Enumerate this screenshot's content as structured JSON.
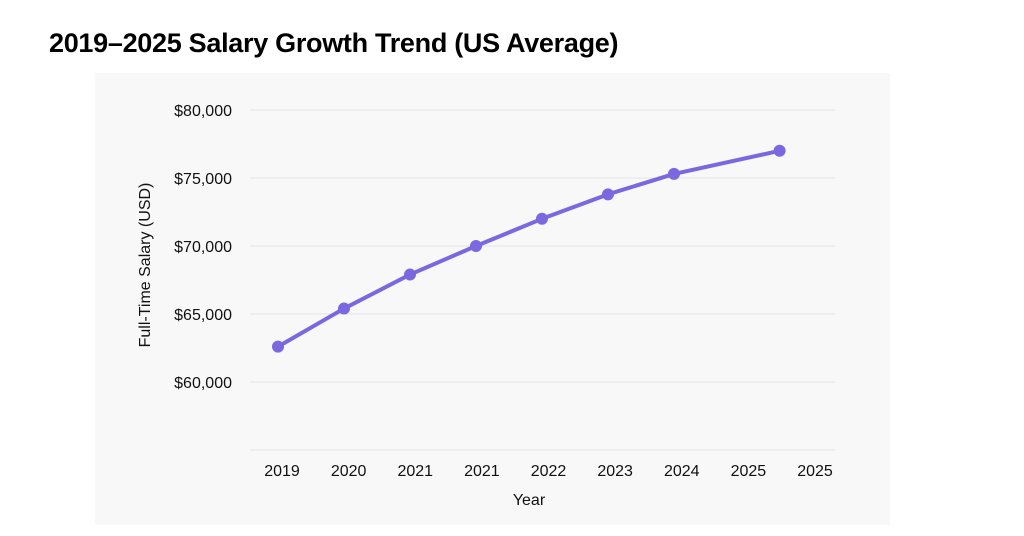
{
  "chart_data": {
    "type": "line",
    "title": "2019–2025 Salary Growth Trend (US Average)",
    "xlabel": "Year",
    "ylabel": "Full-Time Salary (USD)",
    "x_tick_labels": [
      "2019",
      "2020",
      "2021",
      "2021",
      "2022",
      "2023",
      "2024",
      "2025",
      "2025"
    ],
    "y_tick_labels": [
      "$60,000",
      "$65,000",
      "$70,000",
      "$75,000",
      "$80,000"
    ],
    "y_ticks": [
      60000,
      65000,
      70000,
      75000,
      80000
    ],
    "ylim": [
      55000,
      80000
    ],
    "grid": true,
    "legend": "none",
    "line_color": "#7b68e0",
    "series": [
      {
        "name": "Full-Time Salary",
        "x_positions": [
          0,
          1,
          2,
          3,
          4,
          5,
          6,
          7.55,
          null
        ],
        "points": [
          {
            "label": "2019",
            "x": 0,
            "value": 62600
          },
          {
            "label": "2020",
            "x": 1,
            "value": 65400
          },
          {
            "label": "2021",
            "x": 2,
            "value": 67900
          },
          {
            "label": "2021",
            "x": 3,
            "value": 70000
          },
          {
            "label": "2022",
            "x": 4,
            "value": 72000
          },
          {
            "label": "2023",
            "x": 5,
            "value": 73800
          },
          {
            "label": "2024",
            "x": 6,
            "value": 75300
          },
          {
            "label": "2025",
            "x": 7.6,
            "value": 77000
          }
        ]
      }
    ]
  }
}
